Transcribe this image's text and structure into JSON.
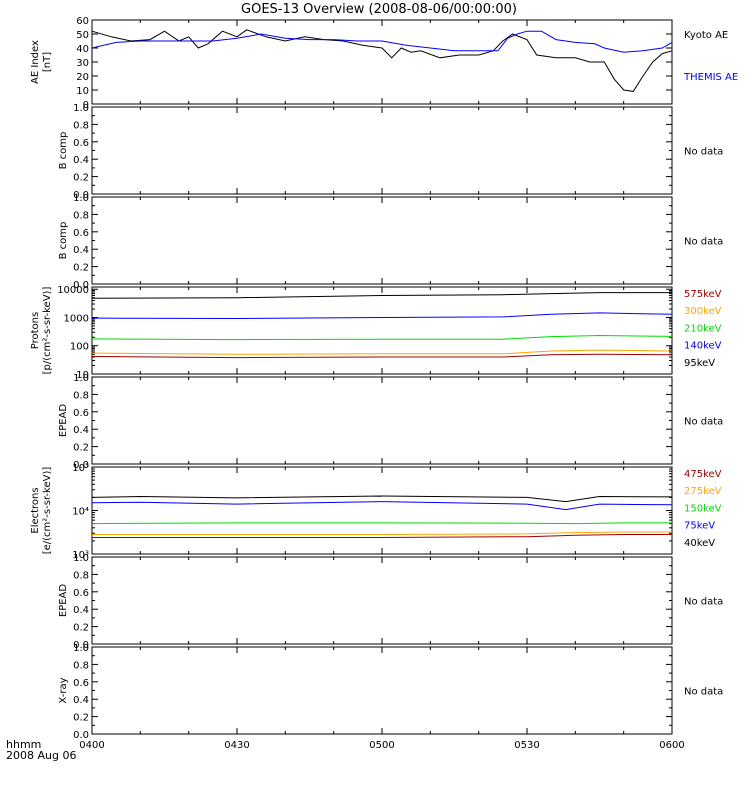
{
  "title": "GOES-13 Overview (2008-08-06/00:00:00)",
  "x_axis": {
    "ticks": [
      "0400",
      "0430",
      "0500",
      "0530",
      "0600"
    ],
    "corner_label_1": "hhmm",
    "corner_label_2": "2008 Aug 06"
  },
  "no_data_text": "No data",
  "chart_data": [
    {
      "id": "ae",
      "type": "line",
      "ylabel": "AE Index",
      "ylabel2": "[nT]",
      "ylim": [
        0,
        60
      ],
      "yticks": [
        "0",
        "10",
        "20",
        "30",
        "40",
        "50",
        "60"
      ],
      "x_range": [
        "04:00",
        "06:00"
      ],
      "series": [
        {
          "name": "Kyoto AE",
          "color": "#000000",
          "x": [
            "04:00",
            "04:04",
            "04:08",
            "04:12",
            "04:15",
            "04:18",
            "04:20",
            "04:22",
            "04:24",
            "04:27",
            "04:30",
            "04:32",
            "04:36",
            "04:40",
            "04:44",
            "04:48",
            "04:52",
            "04:56",
            "05:00",
            "05:02",
            "05:04",
            "05:06",
            "05:08",
            "05:12",
            "05:16",
            "05:20",
            "05:23",
            "05:25",
            "05:27",
            "05:30",
            "05:32",
            "05:36",
            "05:40",
            "05:43",
            "05:46",
            "05:48",
            "05:50",
            "05:52",
            "05:54",
            "05:56",
            "05:58",
            "06:00"
          ],
          "values": [
            52,
            48,
            45,
            46,
            52,
            45,
            48,
            40,
            43,
            52,
            48,
            53,
            48,
            45,
            48,
            46,
            45,
            42,
            40,
            33,
            40,
            37,
            38,
            33,
            35,
            35,
            38,
            45,
            50,
            46,
            35,
            33,
            33,
            30,
            30,
            18,
            10,
            9,
            20,
            30,
            36,
            38
          ]
        },
        {
          "name": "THEMIS AE",
          "color": "#0000ff",
          "x": [
            "04:00",
            "04:05",
            "04:10",
            "04:15",
            "04:20",
            "04:25",
            "04:30",
            "04:35",
            "04:40",
            "04:45",
            "04:50",
            "04:55",
            "05:00",
            "05:05",
            "05:10",
            "05:15",
            "05:20",
            "05:24",
            "05:26",
            "05:28",
            "05:30",
            "05:33",
            "05:36",
            "05:40",
            "05:44",
            "05:46",
            "05:50",
            "05:54",
            "05:58",
            "06:00"
          ],
          "values": [
            40,
            44,
            45,
            45,
            45,
            45,
            47,
            50,
            47,
            46,
            46,
            45,
            45,
            42,
            40,
            38,
            38,
            38,
            47,
            50,
            52,
            52,
            46,
            44,
            43,
            40,
            37,
            38,
            40,
            44
          ]
        }
      ]
    },
    {
      "id": "bcomp1",
      "type": "line",
      "ylabel": "B comp",
      "ylim": [
        0,
        1
      ],
      "yticks": [
        "0.0",
        "0.2",
        "0.4",
        "0.6",
        "0.8",
        "1.0"
      ],
      "minor_yticks": [
        "0.1",
        "0.3",
        "0.5",
        "0.7",
        "0.9"
      ],
      "series": []
    },
    {
      "id": "bcomp2",
      "type": "line",
      "ylabel": "B comp",
      "ylim": [
        0,
        1
      ],
      "yticks": [
        "0.0",
        "0.2",
        "0.4",
        "0.6",
        "0.8",
        "1.0"
      ],
      "minor_yticks": [
        "0.1",
        "0.3",
        "0.5",
        "0.7",
        "0.9"
      ],
      "series": []
    },
    {
      "id": "protons",
      "type": "line",
      "log_scale": true,
      "ylabel": "Protons",
      "ylabel2": "[p/(cm²-s-sr-keV)]",
      "ylim": [
        10,
        12000
      ],
      "yticks": [
        "10",
        "100",
        "1000",
        "10000"
      ],
      "series": [
        {
          "name": "575keV",
          "color": "#a00000",
          "x": [
            "04:00",
            "04:30",
            "05:00",
            "05:25",
            "05:35",
            "05:45",
            "06:00"
          ],
          "values": [
            42,
            38,
            40,
            40,
            48,
            50,
            48
          ]
        },
        {
          "name": "300keV",
          "color": "#ffa500",
          "x": [
            "04:00",
            "04:30",
            "05:00",
            "05:25",
            "05:35",
            "05:45",
            "06:00"
          ],
          "values": [
            55,
            50,
            52,
            52,
            65,
            70,
            65
          ]
        },
        {
          "name": "210keV",
          "color": "#00dd00",
          "x": [
            "04:00",
            "04:30",
            "05:00",
            "05:25",
            "05:35",
            "05:45",
            "06:00"
          ],
          "values": [
            175,
            165,
            170,
            170,
            210,
            230,
            215
          ]
        },
        {
          "name": "140keV",
          "color": "#0000ff",
          "x": [
            "04:00",
            "04:30",
            "05:00",
            "05:25",
            "05:35",
            "05:45",
            "06:00"
          ],
          "values": [
            950,
            920,
            1000,
            1050,
            1300,
            1450,
            1300
          ]
        },
        {
          "name": "95keV",
          "color": "#000000",
          "x": [
            "04:00",
            "04:30",
            "05:00",
            "05:25",
            "05:35",
            "05:45",
            "06:00"
          ],
          "values": [
            4800,
            5000,
            6000,
            6400,
            7000,
            7600,
            7600
          ]
        }
      ]
    },
    {
      "id": "epead1",
      "type": "line",
      "ylabel": "EPEAD",
      "ylim": [
        0,
        1
      ],
      "yticks": [
        "0.0",
        "0.2",
        "0.4",
        "0.6",
        "0.8",
        "1.0"
      ],
      "minor_yticks": [
        "0.1",
        "0.3",
        "0.5",
        "0.7",
        "0.9"
      ],
      "series": []
    },
    {
      "id": "electrons",
      "type": "line",
      "log_scale": true,
      "ylabel": "Electrons",
      "ylabel2": "[e/(cm²-s-sr-keV)]",
      "ylim": [
        1000,
        100000
      ],
      "yticks": [
        "10³",
        "10⁴",
        "10⁵"
      ],
      "series": [
        {
          "name": "475keV",
          "color": "#a00000",
          "x": [
            "04:00",
            "04:30",
            "05:00",
            "05:30",
            "05:40",
            "05:50",
            "06:00"
          ],
          "values": [
            2400,
            2400,
            2400,
            2500,
            2700,
            2800,
            2800
          ]
        },
        {
          "name": "275keV",
          "color": "#ffa500",
          "x": [
            "04:00",
            "04:30",
            "05:00",
            "05:30",
            "05:40",
            "05:50",
            "06:00"
          ],
          "values": [
            2800,
            2800,
            2800,
            2900,
            3100,
            3200,
            3200
          ]
        },
        {
          "name": "150keV",
          "color": "#00dd00",
          "x": [
            "04:00",
            "04:30",
            "05:00",
            "05:30",
            "05:40",
            "05:50",
            "06:00"
          ],
          "values": [
            5000,
            5200,
            5200,
            5100,
            5000,
            5200,
            5200
          ]
        },
        {
          "name": "75keV",
          "color": "#0000ff",
          "x": [
            "04:00",
            "04:10",
            "04:30",
            "05:00",
            "05:30",
            "05:38",
            "05:45",
            "06:00"
          ],
          "values": [
            15000,
            15500,
            14000,
            16000,
            14000,
            10500,
            14000,
            13500
          ]
        },
        {
          "name": "40keV",
          "color": "#000000",
          "x": [
            "04:00",
            "04:10",
            "04:30",
            "05:00",
            "05:30",
            "05:38",
            "05:45",
            "06:00"
          ],
          "values": [
            20000,
            21000,
            19500,
            21500,
            20000,
            16000,
            21000,
            20500
          ]
        }
      ]
    },
    {
      "id": "epead2",
      "type": "line",
      "ylabel": "EPEAD",
      "ylim": [
        0,
        1
      ],
      "yticks": [
        "0.0",
        "0.2",
        "0.4",
        "0.6",
        "0.8",
        "1.0"
      ],
      "minor_yticks": [
        "0.1",
        "0.3",
        "0.5",
        "0.7",
        "0.9"
      ],
      "series": []
    },
    {
      "id": "xray",
      "type": "line",
      "ylabel": "X-ray",
      "ylim": [
        0,
        1
      ],
      "yticks": [
        "0.0",
        "0.2",
        "0.4",
        "0.6",
        "0.8",
        "1.0"
      ],
      "minor_yticks": [
        "0.1",
        "0.3",
        "0.5",
        "0.7",
        "0.9"
      ],
      "series": []
    }
  ]
}
